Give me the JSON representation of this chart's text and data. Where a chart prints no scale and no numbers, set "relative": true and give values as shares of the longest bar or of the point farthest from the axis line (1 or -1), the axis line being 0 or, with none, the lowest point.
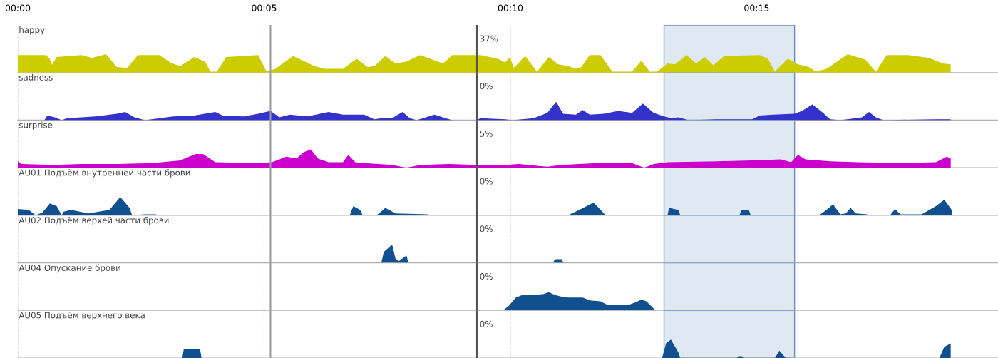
{
  "chart_data": [
    {
      "type": "area",
      "relative": true,
      "title": "happy",
      "annotations": [
        "37%"
      ],
      "xlim": [
        0,
        19.9
      ],
      "xticks": [
        {
          "value": 0,
          "label": "00:00"
        },
        {
          "value": 5,
          "label": "00:05"
        },
        {
          "value": 10,
          "label": "00:10"
        },
        {
          "value": 15,
          "label": "00:15"
        }
      ],
      "grid": "x",
      "tick_labels": "x",
      "ref_lines": [
        {
          "axis": "x",
          "value": 5.13,
          "label": null,
          "color": "#999999"
        },
        {
          "axis": "x",
          "value": 9.32,
          "label": null,
          "color": "#555555"
        }
      ],
      "bands": [
        {
          "axis": "x",
          "from": 13.12,
          "to": 15.77,
          "label": null,
          "color": "#e0e8f1"
        }
      ],
      "series": [
        {
          "color": "#cccc00",
          "x": [
            0,
            0.57,
            0.65,
            0.69,
            0.79,
            1.29,
            1.51,
            1.79,
            2.01,
            2.22,
            2.44,
            2.87,
            3.13,
            3.3,
            3.58,
            3.8,
            3.91,
            4.04,
            4.23,
            4.88,
            5.05,
            5.23,
            5.59,
            6.02,
            6.24,
            6.6,
            6.88,
            7.1,
            7.24,
            7.46,
            7.67,
            7.89,
            8.17,
            8.63,
            8.82,
            9.39,
            9.75,
            9.89,
            9.99,
            10.07,
            10.3,
            10.54,
            10.78,
            10.97,
            11.18,
            11.33,
            11.44,
            11.61,
            11.83,
            12.07,
            12.47,
            12.66,
            12.83,
            12.98,
            13.19,
            13.34,
            13.58,
            13.77,
            13.95,
            14.12,
            14.34,
            15.06,
            15.23,
            15.37,
            15.63,
            15.84,
            16.06,
            16.2,
            16.42,
            16.85,
            17.21,
            17.42,
            17.64,
            18.07,
            18.5,
            18.78,
            18.94
          ],
          "values": [
            0.95,
            0.95,
            0.75,
            0.42,
            0.85,
            0.95,
            0.8,
            1.0,
            0.3,
            0.25,
            0.95,
            0.95,
            0.5,
            0.35,
            0.85,
            0.6,
            0.05,
            0.05,
            0.85,
            0.95,
            0.05,
            0.2,
            0.9,
            0.35,
            0.2,
            0.2,
            0.75,
            0.3,
            0.35,
            0.9,
            0.5,
            0.6,
            0.95,
            0.5,
            0.95,
            0.95,
            0.75,
            0.55,
            0.85,
            0.25,
            0.9,
            0.05,
            0.85,
            0.45,
            0.35,
            0.2,
            0.3,
            0.95,
            0.95,
            0.05,
            0.05,
            0.65,
            0.05,
            0.05,
            0.5,
            0.45,
            0.95,
            0.5,
            0.85,
            0.4,
            0.9,
            0.95,
            0.75,
            0.05,
            0.75,
            0.45,
            0.3,
            0.05,
            0.2,
            1.0,
            0.7,
            0.05,
            0.95,
            0.95,
            0.8,
            0.5,
            0.45
          ]
        }
      ]
    },
    {
      "type": "area",
      "relative": true,
      "title": "sadness",
      "annotations": [
        "0%"
      ],
      "xlim": [
        0,
        19.9
      ],
      "xticks": [
        0,
        5,
        10,
        15
      ],
      "grid": "x",
      "tick_labels": false,
      "ref_lines": [
        {
          "axis": "x",
          "value": 5.13,
          "label": null,
          "color": "#999999"
        },
        {
          "axis": "x",
          "value": 9.32,
          "label": null,
          "color": "#555555"
        }
      ],
      "bands": [
        {
          "axis": "x",
          "from": 13.12,
          "to": 15.77,
          "label": null,
          "color": "#e0e8f1"
        }
      ],
      "series": [
        {
          "color": "#3333cc",
          "x": [
            0,
            0.54,
            0.6,
            0.75,
            0.89,
            1.0,
            1.58,
            2.01,
            2.18,
            2.37,
            2.58,
            2.72,
            3.15,
            3.58,
            4.01,
            4.16,
            4.59,
            4.88,
            5.13,
            5.31,
            5.52,
            5.88,
            6.31,
            6.6,
            7.03,
            7.24,
            7.38,
            7.6,
            7.81,
            7.96,
            8.1,
            8.46,
            8.68,
            8.82,
            9.32,
            9.39,
            9.89,
            10.04,
            10.47,
            10.75,
            10.93,
            11.07,
            11.33,
            11.47,
            11.61,
            11.9,
            12.19,
            12.47,
            12.69,
            12.91,
            13.12,
            13.26,
            13.41,
            13.62,
            14.2,
            14.91,
            15.06,
            15.34,
            15.77,
            15.92,
            16.13,
            16.35,
            16.49,
            16.7,
            17.14,
            17.28,
            17.42,
            17.57,
            18.64,
            18.94
          ],
          "values": [
            0,
            0,
            0.25,
            0.15,
            0,
            0.1,
            0.2,
            0.35,
            0.45,
            0.15,
            0,
            0.05,
            0.2,
            0.25,
            0.45,
            0.25,
            0.2,
            0.35,
            0.5,
            0.15,
            0.3,
            0.2,
            0.45,
            0.3,
            0.3,
            0.05,
            0.1,
            0.1,
            0.45,
            0.1,
            0,
            0.3,
            0.1,
            0,
            0,
            0.1,
            0.05,
            0,
            0.1,
            0.4,
            1.0,
            0.35,
            0.3,
            0.55,
            0.3,
            0.35,
            0.5,
            0.4,
            0.9,
            0.4,
            0.2,
            0.1,
            0.15,
            0,
            0.05,
            0.05,
            0.25,
            0.3,
            0.35,
            0.5,
            0.85,
            0.4,
            0.05,
            0,
            0.15,
            0.45,
            0.15,
            0,
            0.05,
            0.05
          ]
        }
      ]
    },
    {
      "type": "area",
      "relative": true,
      "title": "surprise",
      "annotations": [
        "5%"
      ],
      "xlim": [
        0,
        19.9
      ],
      "xticks": [
        0,
        5,
        10,
        15
      ],
      "grid": "x",
      "tick_labels": false,
      "ref_lines": [
        {
          "axis": "x",
          "value": 5.13,
          "label": null,
          "color": "#999999"
        },
        {
          "axis": "x",
          "value": 9.32,
          "label": null,
          "color": "#555555"
        }
      ],
      "bands": [
        {
          "axis": "x",
          "from": 13.12,
          "to": 15.77,
          "label": null,
          "color": "#e0e8f1"
        }
      ],
      "series": [
        {
          "color": "#cc00cc",
          "x": [
            0,
            0.07,
            0.72,
            1.29,
            2.01,
            2.72,
            3.3,
            3.61,
            3.76,
            4.01,
            4.88,
            5.16,
            5.45,
            5.66,
            5.81,
            5.95,
            6.09,
            6.31,
            6.6,
            6.71,
            6.85,
            7.03,
            7.6,
            7.89,
            8.17,
            8.75,
            9.32,
            9.89,
            10.18,
            10.75,
            11.04,
            11.76,
            12.47,
            12.72,
            12.91,
            13.19,
            14.2,
            14.91,
            15.49,
            15.7,
            15.84,
            15.99,
            16.49,
            17.06,
            17.92,
            18.64,
            18.86,
            18.94
          ],
          "values": [
            0.35,
            0.2,
            0.15,
            0.2,
            0.2,
            0.25,
            0.4,
            0.75,
            0.75,
            0.3,
            0.25,
            0.3,
            0.6,
            0.5,
            0.85,
            1.0,
            0.5,
            0.3,
            0.3,
            0.7,
            0.3,
            0.25,
            0.15,
            0,
            0.15,
            0.2,
            0.15,
            0.15,
            0.2,
            0.05,
            0.15,
            0.25,
            0.25,
            0,
            0.2,
            0.3,
            0.35,
            0.4,
            0.45,
            0.3,
            0.7,
            0.45,
            0.35,
            0.3,
            0.25,
            0.3,
            0.6,
            0.5
          ]
        }
      ]
    },
    {
      "type": "area",
      "relative": true,
      "title": "AU01 Подъём внутренней части брови",
      "annotations": [
        "0%"
      ],
      "xlim": [
        0,
        19.9
      ],
      "xticks": [
        0,
        5,
        10,
        15
      ],
      "grid": "x",
      "tick_labels": false,
      "ref_lines": [
        {
          "axis": "x",
          "value": 5.13,
          "label": null,
          "color": "#999999"
        },
        {
          "axis": "x",
          "value": 9.32,
          "label": null,
          "color": "#555555"
        }
      ],
      "bands": [
        {
          "axis": "x",
          "from": 13.12,
          "to": 15.77,
          "label": null,
          "color": "#e0e8f1"
        }
      ],
      "series": [
        {
          "color": "#11508f",
          "x": [
            0,
            0.22,
            0.36,
            0.5,
            0.65,
            0.79,
            0.89,
            0.93,
            1.08,
            1.43,
            1.86,
            2.08,
            2.27,
            2.32,
            2.58,
            2.8,
            2.84,
            6.74,
            6.81,
            6.95,
            7.0,
            7.24,
            7.31,
            7.46,
            7.67,
            8.32,
            8.39,
            11.18,
            11.21,
            11.4,
            11.69,
            11.9,
            11.93,
            13.19,
            13.22,
            13.41,
            13.45,
            14.65,
            14.7,
            14.84,
            14.88,
            16.27,
            16.42,
            16.55,
            16.7,
            16.81,
            16.91,
            17.01,
            17.24,
            17.28,
            17.71,
            17.81,
            17.92,
            18.35,
            18.64,
            18.81,
            18.96
          ],
          "values": [
            0.35,
            0.3,
            0,
            0.15,
            0.65,
            0.5,
            0,
            0.2,
            0.3,
            0.1,
            0.3,
            1.0,
            0.4,
            0,
            0.05,
            0.05,
            0,
            0,
            0.5,
            0.3,
            0,
            0,
            0.05,
            0.4,
            0.1,
            0.05,
            0,
            0,
            0.05,
            0.3,
            0.7,
            0.1,
            0,
            0,
            0.4,
            0.3,
            0,
            0,
            0.3,
            0.3,
            0,
            0,
            0.3,
            0.6,
            0.05,
            0.1,
            0.4,
            0.1,
            0.05,
            0,
            0,
            0.35,
            0.05,
            0.05,
            0.5,
            0.85,
            0.3
          ]
        }
      ]
    },
    {
      "type": "area",
      "relative": true,
      "title": "AU02 Подъём верхей части брови",
      "annotations": [
        "0%"
      ],
      "xlim": [
        0,
        19.9
      ],
      "xticks": [
        0,
        5,
        10,
        15
      ],
      "grid": "x",
      "tick_labels": false,
      "ref_lines": [
        {
          "axis": "x",
          "value": 5.13,
          "label": null,
          "color": "#999999"
        },
        {
          "axis": "x",
          "value": 9.32,
          "label": null,
          "color": "#555555"
        }
      ],
      "bands": [
        {
          "axis": "x",
          "from": 13.12,
          "to": 15.77,
          "label": null,
          "color": "#e0e8f1"
        }
      ],
      "series": [
        {
          "color": "#11508f",
          "x": [
            7.38,
            7.43,
            7.6,
            7.67,
            7.74,
            7.89,
            7.93,
            10.87,
            10.9,
            11.04,
            11.08
          ],
          "values": [
            0,
            0.6,
            1.0,
            0.2,
            0.1,
            0.4,
            0,
            0,
            0.2,
            0.2,
            0
          ]
        }
      ]
    },
    {
      "type": "area",
      "relative": true,
      "title": "AU04 Опускание брови",
      "annotations": [
        "0%"
      ],
      "xlim": [
        0,
        19.9
      ],
      "xticks": [
        0,
        5,
        10,
        15
      ],
      "grid": "x",
      "tick_labels": false,
      "ref_lines": [
        {
          "axis": "x",
          "value": 5.13,
          "label": null,
          "color": "#999999"
        },
        {
          "axis": "x",
          "value": 9.32,
          "label": null,
          "color": "#555555"
        }
      ],
      "bands": [
        {
          "axis": "x",
          "from": 13.12,
          "to": 15.77,
          "label": null,
          "color": "#e0e8f1"
        }
      ],
      "series": [
        {
          "color": "#11508f",
          "x": [
            9.85,
            9.97,
            10.11,
            10.25,
            10.47,
            10.68,
            10.78,
            10.9,
            11.04,
            11.18,
            11.47,
            11.61,
            11.83,
            11.97,
            12.19,
            12.4,
            12.55,
            12.66,
            12.76,
            12.93,
            12.95
          ],
          "values": [
            0,
            0.25,
            0.7,
            0.85,
            0.84,
            0.9,
            1.0,
            0.85,
            0.75,
            0.7,
            0.7,
            0.55,
            0.5,
            0.3,
            0.3,
            0.3,
            0.45,
            0.6,
            0.5,
            0.05,
            0
          ]
        }
      ]
    },
    {
      "type": "area",
      "relative": true,
      "title": "AU05 Подъём верхнего века",
      "annotations": [
        "0%"
      ],
      "xlim": [
        0,
        19.9
      ],
      "xticks": [
        0,
        5,
        10,
        15
      ],
      "grid": "x",
      "tick_labels": false,
      "ref_lines": [
        {
          "axis": "x",
          "value": 5.13,
          "label": null,
          "color": "#999999"
        },
        {
          "axis": "x",
          "value": 9.32,
          "label": null,
          "color": "#555555"
        }
      ],
      "bands": [
        {
          "axis": "x",
          "from": 13.12,
          "to": 15.77,
          "label": null,
          "color": "#e0e8f1"
        }
      ],
      "series": [
        {
          "color": "#11508f",
          "x": [
            3.34,
            3.37,
            3.7,
            3.73,
            13.08,
            13.16,
            13.26,
            13.41,
            13.45,
            14.6,
            14.63,
            14.7,
            14.73,
            15.37,
            15.46,
            15.56,
            15.6,
            18.71,
            18.81,
            18.94
          ],
          "values": [
            0,
            0.5,
            0.5,
            0,
            0,
            0.8,
            1.0,
            0.3,
            0,
            0,
            0.1,
            0.1,
            0,
            0,
            0.4,
            0.1,
            0,
            0,
            0.6,
            0.8
          ]
        }
      ]
    }
  ]
}
